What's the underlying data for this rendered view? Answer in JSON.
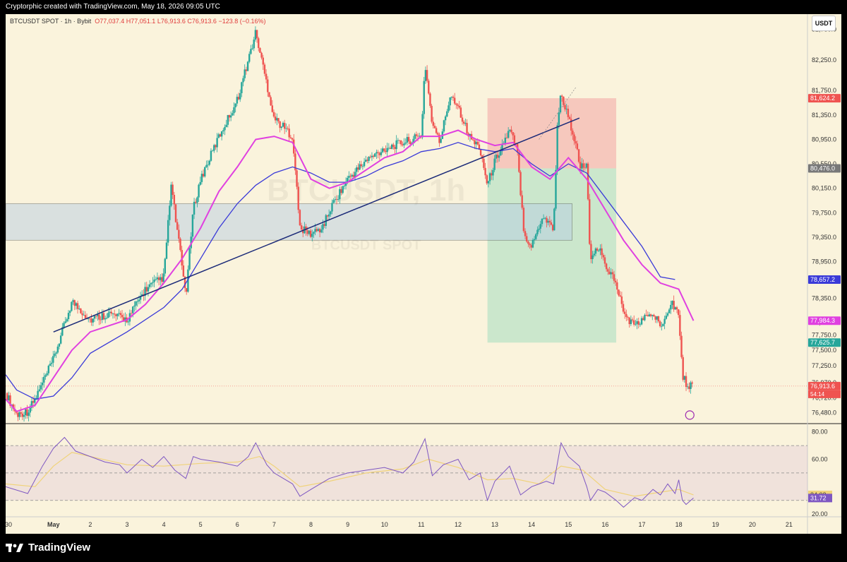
{
  "header": {
    "credit": "Cryptorphic created with TradingView.com, May 18, 2026 09:05 UTC"
  },
  "symbol": {
    "name": "BTCUSDT SPOT · 1h · Bybit",
    "o": "O77,037.4",
    "h": "H77,051.1",
    "l": "L76,913.6",
    "c": "C76,913.6",
    "chg": "−123.8 (−0.16%)"
  },
  "currency_button": "USDT",
  "watermark": {
    "main": "BTCUSDT, 1h",
    "sub": "BTCUSDT SPOT"
  },
  "footer": {
    "brand": "TradingView"
  },
  "colors": {
    "up": "#26a69a",
    "down": "#ef5350",
    "ema_fast": "#e040e0",
    "ema_slow": "#3a3ad8",
    "trendline": "#1b2a78",
    "rsi": "#7e57c2",
    "rsi_ma": "#f0d37a"
  },
  "chart_data": [
    {
      "type": "candlestick",
      "title": "BTCUSDT SPOT · 1h · Bybit",
      "x_ticks": [
        "30",
        "May",
        "2",
        "3",
        "4",
        "5",
        "6",
        "7",
        "8",
        "9",
        "10",
        "11",
        "12",
        "13",
        "14",
        "15",
        "16",
        "17",
        "18",
        "19",
        "20",
        "21"
      ],
      "y_ticks": [
        "82,750.0",
        "82,250.0",
        "81,750.0",
        "81,350.0",
        "80,950.0",
        "80,550.0",
        "80,150.0",
        "79,750.0",
        "79,350.0",
        "78,950.0",
        "78,350.0",
        "77,950.0",
        "77,750.0",
        "77,500.0",
        "77,250.0",
        "76,970.0",
        "76,720.0",
        "76,480.0"
      ],
      "ylim": [
        76300,
        83000
      ],
      "price_path": [
        {
          "x": 29.7,
          "y": 76800
        },
        {
          "x": 30.0,
          "y": 76450
        },
        {
          "x": 30.3,
          "y": 76500
        },
        {
          "x": 30.5,
          "y": 76700
        },
        {
          "x": 31.0,
          "y": 77350
        },
        {
          "x": 31.5,
          "y": 78300
        },
        {
          "x": 32.0,
          "y": 78000
        },
        {
          "x": 32.5,
          "y": 78100
        },
        {
          "x": 33.0,
          "y": 78000
        },
        {
          "x": 33.5,
          "y": 78500
        },
        {
          "x": 34.0,
          "y": 78700
        },
        {
          "x": 34.2,
          "y": 80200
        },
        {
          "x": 34.4,
          "y": 79300
        },
        {
          "x": 34.6,
          "y": 78400
        },
        {
          "x": 34.8,
          "y": 79800
        },
        {
          "x": 35.0,
          "y": 80300
        },
        {
          "x": 35.5,
          "y": 81000
        },
        {
          "x": 36.0,
          "y": 81600
        },
        {
          "x": 36.5,
          "y": 82700
        },
        {
          "x": 37.0,
          "y": 81300
        },
        {
          "x": 37.5,
          "y": 81000
        },
        {
          "x": 37.7,
          "y": 79500
        },
        {
          "x": 38.0,
          "y": 79400
        },
        {
          "x": 38.3,
          "y": 79500
        },
        {
          "x": 38.6,
          "y": 79900
        },
        {
          "x": 39.0,
          "y": 80300
        },
        {
          "x": 39.5,
          "y": 80600
        },
        {
          "x": 40.0,
          "y": 80800
        },
        {
          "x": 40.5,
          "y": 80900
        },
        {
          "x": 41.0,
          "y": 81000
        },
        {
          "x": 41.1,
          "y": 82200
        },
        {
          "x": 41.3,
          "y": 81200
        },
        {
          "x": 41.5,
          "y": 80900
        },
        {
          "x": 41.8,
          "y": 81700
        },
        {
          "x": 42.0,
          "y": 81500
        },
        {
          "x": 42.3,
          "y": 81000
        },
        {
          "x": 42.6,
          "y": 80800
        },
        {
          "x": 42.8,
          "y": 80200
        },
        {
          "x": 43.0,
          "y": 80600
        },
        {
          "x": 43.4,
          "y": 81100
        },
        {
          "x": 43.6,
          "y": 80800
        },
        {
          "x": 43.8,
          "y": 79400
        },
        {
          "x": 44.0,
          "y": 79200
        },
        {
          "x": 44.3,
          "y": 79700
        },
        {
          "x": 44.6,
          "y": 79500
        },
        {
          "x": 44.7,
          "y": 81200
        },
        {
          "x": 44.8,
          "y": 81700
        },
        {
          "x": 45.0,
          "y": 81300
        },
        {
          "x": 45.2,
          "y": 80900
        },
        {
          "x": 45.3,
          "y": 80500
        },
        {
          "x": 45.5,
          "y": 80500
        },
        {
          "x": 45.6,
          "y": 78900
        },
        {
          "x": 45.8,
          "y": 79200
        },
        {
          "x": 46.0,
          "y": 78900
        },
        {
          "x": 46.3,
          "y": 78600
        },
        {
          "x": 46.5,
          "y": 78100
        },
        {
          "x": 46.8,
          "y": 77900
        },
        {
          "x": 47.0,
          "y": 78000
        },
        {
          "x": 47.3,
          "y": 78100
        },
        {
          "x": 47.5,
          "y": 77900
        },
        {
          "x": 47.8,
          "y": 78300
        },
        {
          "x": 48.0,
          "y": 78100
        },
        {
          "x": 48.1,
          "y": 77100
        },
        {
          "x": 48.2,
          "y": 76950
        },
        {
          "x": 48.4,
          "y": 76913.6
        }
      ],
      "ema_fast": [
        {
          "x": 29.7,
          "y": 76700
        },
        {
          "x": 30.0,
          "y": 76500
        },
        {
          "x": 30.5,
          "y": 76600
        },
        {
          "x": 31.0,
          "y": 77050
        },
        {
          "x": 31.5,
          "y": 77500
        },
        {
          "x": 32.0,
          "y": 77800
        },
        {
          "x": 33.0,
          "y": 78000
        },
        {
          "x": 33.5,
          "y": 78250
        },
        {
          "x": 34.0,
          "y": 78600
        },
        {
          "x": 34.5,
          "y": 79000
        },
        {
          "x": 35.0,
          "y": 79500
        },
        {
          "x": 35.5,
          "y": 80100
        },
        {
          "x": 36.0,
          "y": 80500
        },
        {
          "x": 36.5,
          "y": 80950
        },
        {
          "x": 37.0,
          "y": 81000
        },
        {
          "x": 37.5,
          "y": 80900
        },
        {
          "x": 38.0,
          "y": 80300
        },
        {
          "x": 38.5,
          "y": 80150
        },
        {
          "x": 39.0,
          "y": 80250
        },
        {
          "x": 39.5,
          "y": 80450
        },
        {
          "x": 40.0,
          "y": 80650
        },
        {
          "x": 40.5,
          "y": 80750
        },
        {
          "x": 41.0,
          "y": 81000
        },
        {
          "x": 41.5,
          "y": 81000
        },
        {
          "x": 42.0,
          "y": 81100
        },
        {
          "x": 42.5,
          "y": 80950
        },
        {
          "x": 43.0,
          "y": 80850
        },
        {
          "x": 43.5,
          "y": 80900
        },
        {
          "x": 44.0,
          "y": 80500
        },
        {
          "x": 44.5,
          "y": 80300
        },
        {
          "x": 45.0,
          "y": 80650
        },
        {
          "x": 45.5,
          "y": 80300
        },
        {
          "x": 46.0,
          "y": 79800
        },
        {
          "x": 46.5,
          "y": 79300
        },
        {
          "x": 47.0,
          "y": 78900
        },
        {
          "x": 47.5,
          "y": 78600
        },
        {
          "x": 48.0,
          "y": 78500
        },
        {
          "x": 48.4,
          "y": 77984.3
        }
      ],
      "ema_slow": [
        {
          "x": 29.7,
          "y": 77100
        },
        {
          "x": 30.0,
          "y": 76850
        },
        {
          "x": 30.5,
          "y": 76700
        },
        {
          "x": 31.0,
          "y": 76750
        },
        {
          "x": 31.5,
          "y": 77050
        },
        {
          "x": 32.0,
          "y": 77450
        },
        {
          "x": 33.0,
          "y": 77800
        },
        {
          "x": 34.0,
          "y": 78200
        },
        {
          "x": 34.5,
          "y": 78500
        },
        {
          "x": 35.0,
          "y": 79000
        },
        {
          "x": 35.5,
          "y": 79500
        },
        {
          "x": 36.0,
          "y": 79900
        },
        {
          "x": 36.5,
          "y": 80200
        },
        {
          "x": 37.0,
          "y": 80400
        },
        {
          "x": 37.5,
          "y": 80500
        },
        {
          "x": 38.0,
          "y": 80400
        },
        {
          "x": 38.5,
          "y": 80250
        },
        {
          "x": 39.0,
          "y": 80250
        },
        {
          "x": 39.5,
          "y": 80350
        },
        {
          "x": 40.0,
          "y": 80500
        },
        {
          "x": 40.5,
          "y": 80600
        },
        {
          "x": 41.0,
          "y": 80750
        },
        {
          "x": 41.5,
          "y": 80800
        },
        {
          "x": 42.0,
          "y": 80900
        },
        {
          "x": 42.5,
          "y": 80800
        },
        {
          "x": 43.0,
          "y": 80750
        },
        {
          "x": 43.5,
          "y": 80800
        },
        {
          "x": 44.0,
          "y": 80550
        },
        {
          "x": 44.5,
          "y": 80350
        },
        {
          "x": 45.0,
          "y": 80550
        },
        {
          "x": 45.5,
          "y": 80400
        },
        {
          "x": 46.0,
          "y": 80000
        },
        {
          "x": 46.5,
          "y": 79600
        },
        {
          "x": 47.0,
          "y": 79200
        },
        {
          "x": 47.5,
          "y": 78700
        },
        {
          "x": 47.9,
          "y": 78657.2
        }
      ],
      "trendline": {
        "x": [
          31.0,
          45.3
        ],
        "y": [
          77800,
          81300
        ]
      },
      "support_zone": {
        "x": [
          29.7,
          45.1
        ],
        "y": [
          79300,
          79900
        ]
      },
      "short_position": {
        "x": [
          42.8,
          46.3
        ],
        "entry": 80476.0,
        "stop": 81624.2,
        "target": 77625.7
      },
      "last_price": 76913.6,
      "countdown": "54:14",
      "price_labels": [
        {
          "value": "81,624.2",
          "color": "#ef5350"
        },
        {
          "value": "80,476.0",
          "color": "#787878"
        },
        {
          "value": "78,657.2",
          "color": "#3a3ad8"
        },
        {
          "value": "77,984.3",
          "color": "#e040e0"
        },
        {
          "value": "77,625.7",
          "color": "#26a69a"
        },
        {
          "value": "76,913.6",
          "color": "#ef5350"
        }
      ]
    },
    {
      "type": "line",
      "title": "",
      "y_ticks": [
        "80.00",
        "60.00",
        "20.00"
      ],
      "ylim": [
        18,
        85
      ],
      "bands": [
        70,
        50,
        30
      ],
      "series": [
        {
          "values": [
            {
              "x": 29.7,
              "y": 40
            },
            {
              "x": 30.3,
              "y": 35
            },
            {
              "x": 30.7,
              "y": 55
            },
            {
              "x": 31.0,
              "y": 68
            },
            {
              "x": 31.3,
              "y": 76
            },
            {
              "x": 31.6,
              "y": 66
            },
            {
              "x": 32.0,
              "y": 62
            },
            {
              "x": 32.4,
              "y": 58
            },
            {
              "x": 32.8,
              "y": 56
            },
            {
              "x": 33.0,
              "y": 50
            },
            {
              "x": 33.4,
              "y": 60
            },
            {
              "x": 33.7,
              "y": 54
            },
            {
              "x": 34.0,
              "y": 62
            },
            {
              "x": 34.3,
              "y": 52
            },
            {
              "x": 34.6,
              "y": 46
            },
            {
              "x": 34.8,
              "y": 62
            },
            {
              "x": 35.0,
              "y": 60
            },
            {
              "x": 35.5,
              "y": 58
            },
            {
              "x": 36.0,
              "y": 55
            },
            {
              "x": 36.3,
              "y": 62
            },
            {
              "x": 36.5,
              "y": 72
            },
            {
              "x": 36.8,
              "y": 56
            },
            {
              "x": 37.0,
              "y": 50
            },
            {
              "x": 37.5,
              "y": 42
            },
            {
              "x": 37.7,
              "y": 33
            },
            {
              "x": 38.0,
              "y": 38
            },
            {
              "x": 38.5,
              "y": 46
            },
            {
              "x": 39.0,
              "y": 50
            },
            {
              "x": 39.5,
              "y": 52
            },
            {
              "x": 40.0,
              "y": 54
            },
            {
              "x": 40.5,
              "y": 50
            },
            {
              "x": 40.8,
              "y": 58
            },
            {
              "x": 41.1,
              "y": 75
            },
            {
              "x": 41.3,
              "y": 48
            },
            {
              "x": 41.6,
              "y": 56
            },
            {
              "x": 42.0,
              "y": 60
            },
            {
              "x": 42.3,
              "y": 45
            },
            {
              "x": 42.6,
              "y": 50
            },
            {
              "x": 42.8,
              "y": 30
            },
            {
              "x": 43.0,
              "y": 44
            },
            {
              "x": 43.4,
              "y": 55
            },
            {
              "x": 43.7,
              "y": 34
            },
            {
              "x": 44.0,
              "y": 40
            },
            {
              "x": 44.4,
              "y": 44
            },
            {
              "x": 44.6,
              "y": 42
            },
            {
              "x": 44.8,
              "y": 72
            },
            {
              "x": 45.0,
              "y": 62
            },
            {
              "x": 45.3,
              "y": 55
            },
            {
              "x": 45.5,
              "y": 40
            },
            {
              "x": 45.6,
              "y": 30
            },
            {
              "x": 45.8,
              "y": 38
            },
            {
              "x": 46.0,
              "y": 36
            },
            {
              "x": 46.3,
              "y": 30
            },
            {
              "x": 46.5,
              "y": 25
            },
            {
              "x": 46.8,
              "y": 32
            },
            {
              "x": 47.0,
              "y": 30
            },
            {
              "x": 47.3,
              "y": 38
            },
            {
              "x": 47.5,
              "y": 34
            },
            {
              "x": 47.7,
              "y": 42
            },
            {
              "x": 47.9,
              "y": 35
            },
            {
              "x": 48.0,
              "y": 45
            },
            {
              "x": 48.1,
              "y": 30
            },
            {
              "x": 48.2,
              "y": 27
            },
            {
              "x": 48.4,
              "y": 31.72
            }
          ]
        },
        {
          "values": [
            {
              "x": 29.7,
              "y": 42
            },
            {
              "x": 30.5,
              "y": 40
            },
            {
              "x": 31.0,
              "y": 55
            },
            {
              "x": 31.5,
              "y": 65
            },
            {
              "x": 32.0,
              "y": 62
            },
            {
              "x": 33.0,
              "y": 56
            },
            {
              "x": 34.0,
              "y": 55
            },
            {
              "x": 35.0,
              "y": 57
            },
            {
              "x": 36.0,
              "y": 58
            },
            {
              "x": 36.6,
              "y": 62
            },
            {
              "x": 37.0,
              "y": 55
            },
            {
              "x": 37.7,
              "y": 40
            },
            {
              "x": 38.5,
              "y": 44
            },
            {
              "x": 39.5,
              "y": 50
            },
            {
              "x": 40.5,
              "y": 53
            },
            {
              "x": 41.2,
              "y": 60
            },
            {
              "x": 42.0,
              "y": 54
            },
            {
              "x": 42.8,
              "y": 45
            },
            {
              "x": 43.5,
              "y": 46
            },
            {
              "x": 44.2,
              "y": 42
            },
            {
              "x": 44.8,
              "y": 55
            },
            {
              "x": 45.4,
              "y": 52
            },
            {
              "x": 46.0,
              "y": 38
            },
            {
              "x": 46.8,
              "y": 33
            },
            {
              "x": 47.5,
              "y": 36
            },
            {
              "x": 48.0,
              "y": 38
            },
            {
              "x": 48.4,
              "y": 34.02
            }
          ]
        }
      ],
      "value_labels": [
        {
          "value": "34.02",
          "color": "#f0d37a"
        },
        {
          "value": "31.72",
          "color": "#7e57c2"
        }
      ]
    }
  ]
}
